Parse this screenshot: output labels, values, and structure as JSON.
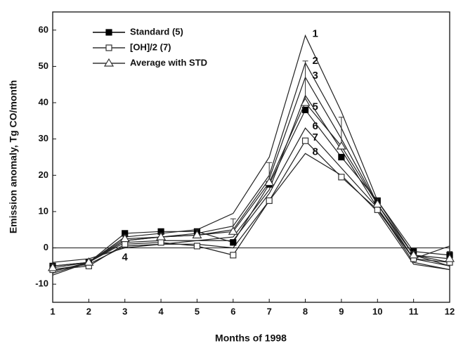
{
  "chart_data": {
    "type": "line",
    "x_label": "Months of 1998",
    "y_label": "Emission anomaly, Tg CO/month",
    "x": [
      1,
      2,
      3,
      4,
      5,
      6,
      7,
      8,
      9,
      10,
      11,
      12
    ],
    "xlim": [
      1,
      12
    ],
    "xticks": [
      1,
      2,
      3,
      4,
      5,
      6,
      7,
      8,
      9,
      10,
      11,
      12
    ],
    "ylim": [
      -15,
      65
    ],
    "yticks": [
      -10,
      0,
      10,
      20,
      30,
      40,
      50,
      60
    ],
    "reference_line": 0,
    "series": [
      {
        "name": "Standard (5)",
        "label": "5",
        "marker": "filled-square",
        "color": "#000000",
        "values": [
          -5,
          -4,
          4,
          4.5,
          4.5,
          1.5,
          17.5,
          38,
          25,
          13,
          -1,
          -2
        ]
      },
      {
        "name": "[OH]/2 (7)",
        "label": "7",
        "marker": "open-square",
        "color": "#333333",
        "values": [
          -6,
          -5,
          1,
          1.5,
          0.5,
          -2,
          13,
          29.5,
          19.5,
          10.5,
          -3,
          -4
        ]
      },
      {
        "name": "Average with STD",
        "marker": "open-triangle",
        "color": "#333333",
        "values": [
          -5.5,
          -4,
          2.5,
          3,
          3.5,
          4.5,
          18,
          40,
          28,
          12,
          -2,
          -3
        ],
        "errors": [
          1,
          0.5,
          1,
          1,
          1.5,
          3.5,
          5.5,
          11.5,
          8,
          1.5,
          1,
          2
        ]
      }
    ],
    "scenarios": [
      {
        "name": "1",
        "values": [
          -7.5,
          -4,
          3,
          4,
          5,
          9.5,
          25,
          58.5,
          37.5,
          13,
          -2,
          -5
        ]
      },
      {
        "name": "2",
        "values": [
          -7,
          -4,
          2,
          3,
          4,
          6,
          20,
          51,
          33,
          12,
          -3,
          -5
        ]
      },
      {
        "name": "3",
        "values": [
          -6.5,
          -4,
          2,
          3,
          3.5,
          5,
          19,
          47,
          30,
          12,
          -2,
          -4
        ]
      },
      {
        "name": "4",
        "values": [
          -4,
          -3,
          0,
          1,
          2,
          3,
          16,
          42,
          27,
          11,
          -4,
          -6
        ]
      },
      {
        "name": "6",
        "values": [
          -5,
          -4,
          1.5,
          2,
          2,
          2,
          15,
          33,
          22,
          11,
          -3,
          0.5
        ]
      },
      {
        "name": "8",
        "values": [
          -6,
          -4.5,
          0.5,
          1,
          1,
          0,
          13,
          26,
          20,
          10,
          -4.5,
          -6
        ]
      }
    ]
  }
}
